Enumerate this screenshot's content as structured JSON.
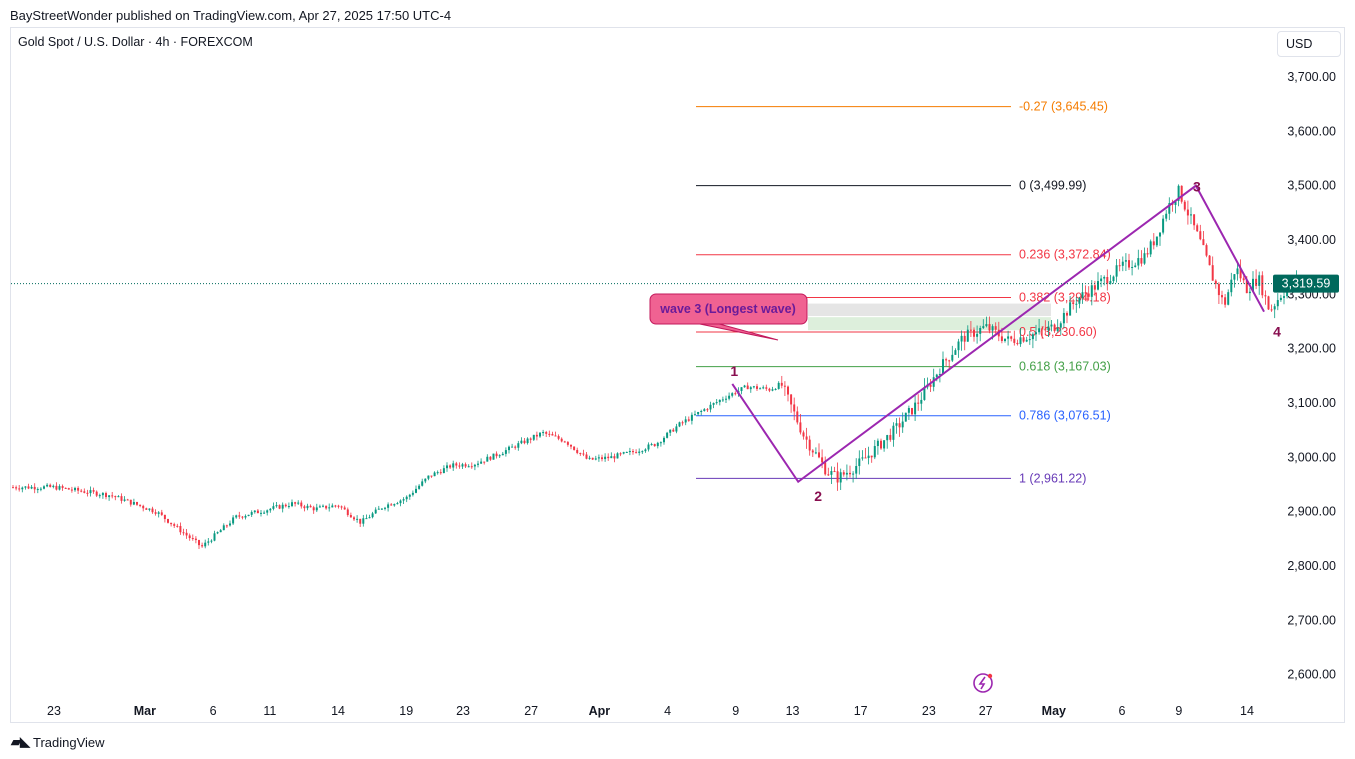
{
  "header": {
    "publish_line": "BayStreetWonder published on TradingView.com, Apr 27, 2025 17:50 UTC-4",
    "symbol_line": "Gold Spot / U.S. Dollar · 4h · FOREXCOM",
    "currency": "USD"
  },
  "footer": {
    "brand": "TradingView"
  },
  "colors": {
    "up": "#089981",
    "down": "#f23645",
    "wave_line": "#9c27b0",
    "wave_label": "#880e4f",
    "price_badge": "#00695c"
  },
  "chart_data": {
    "type": "candlestick",
    "ylim": [
      2560,
      3740
    ],
    "y_ticks": [
      "3,700.00",
      "3,600.00",
      "3,500.00",
      "3,400.00",
      "3,300.00",
      "3,200.00",
      "3,100.00",
      "3,000.00",
      "2,900.00",
      "2,800.00",
      "2,700.00",
      "2,600.00"
    ],
    "y_tick_values": [
      3700,
      3600,
      3500,
      3400,
      3300,
      3200,
      3100,
      3000,
      2900,
      2800,
      2700,
      2600
    ],
    "x_ticks": [
      "23",
      "Mar",
      "6",
      "11",
      "14",
      "19",
      "23",
      "27",
      "Apr",
      "4",
      "9",
      "13",
      "17",
      "23",
      "27",
      "May",
      "6",
      "9",
      "14"
    ],
    "x_tick_index": [
      0,
      8,
      14,
      19,
      25,
      31,
      36,
      42,
      48,
      54,
      60,
      65,
      71,
      77,
      82,
      88,
      94,
      99,
      105
    ],
    "current_price": {
      "label": "3,319.59",
      "value": 3319.59
    },
    "price_path": [
      [
        0,
        2945
      ],
      [
        5,
        2930
      ],
      [
        9,
        2900
      ],
      [
        13,
        2835
      ],
      [
        16,
        2890
      ],
      [
        19,
        2905
      ],
      [
        21,
        2915
      ],
      [
        23,
        2905
      ],
      [
        25,
        2912
      ],
      [
        27,
        2880
      ],
      [
        29,
        2910
      ],
      [
        31,
        2925
      ],
      [
        33,
        2965
      ],
      [
        35,
        2985
      ],
      [
        37,
        2988
      ],
      [
        39,
        3005
      ],
      [
        41,
        3025
      ],
      [
        43,
        3045
      ],
      [
        45,
        3030
      ],
      [
        47,
        2995
      ],
      [
        49,
        3000
      ],
      [
        51,
        3010
      ],
      [
        53,
        3025
      ],
      [
        55,
        3060
      ],
      [
        57,
        3085
      ],
      [
        59,
        3110
      ],
      [
        61,
        3130
      ],
      [
        63,
        3125
      ],
      [
        64,
        3135
      ],
      [
        66,
        3040
      ],
      [
        68,
        2975
      ],
      [
        69,
        2962
      ],
      [
        71,
        2990
      ],
      [
        72,
        3010
      ],
      [
        74,
        3050
      ],
      [
        76,
        3100
      ],
      [
        78,
        3165
      ],
      [
        80,
        3220
      ],
      [
        82,
        3240
      ],
      [
        84,
        3215
      ],
      [
        86,
        3225
      ],
      [
        88,
        3240
      ],
      [
        90,
        3290
      ],
      [
        92,
        3320
      ],
      [
        94,
        3350
      ],
      [
        96,
        3370
      ],
      [
        97,
        3405
      ],
      [
        98,
        3460
      ],
      [
        99,
        3490
      ],
      [
        100,
        3440
      ],
      [
        101,
        3390
      ],
      [
        102,
        3330
      ],
      [
        103,
        3280
      ],
      [
        104,
        3350
      ],
      [
        105,
        3310
      ],
      [
        106,
        3330
      ],
      [
        107,
        3270
      ],
      [
        108,
        3300
      ],
      [
        109,
        3320
      ]
    ],
    "fib_levels": [
      {
        "label": "-0.27 (3,645.45)",
        "value": 3645.45,
        "color": "#f57c00"
      },
      {
        "label": "0 (3,499.99)",
        "value": 3499.99,
        "color": "#131722"
      },
      {
        "label": "0.236 (3,372.84)",
        "value": 3372.84,
        "color": "#f23645"
      },
      {
        "label": "0.382 (3,294.18)",
        "value": 3294.18,
        "color": "#f23645"
      },
      {
        "label": "0.5 (3,230.60)",
        "value": 3230.6,
        "color": "#f23645"
      },
      {
        "label": "0.618 (3,167.03)",
        "value": 3167.03,
        "color": "#43a047"
      },
      {
        "label": "0.786 (3,076.51)",
        "value": 3076.51,
        "color": "#2962ff"
      },
      {
        "label": "1 (2,961.22)",
        "value": 2961.22,
        "color": "#673ab7"
      }
    ],
    "zones": [
      {
        "from": 3260,
        "to": 3283,
        "color": "#e0e0e0"
      },
      {
        "from": 3234,
        "to": 3258,
        "color": "#d7ecd6"
      }
    ],
    "wave_points": [
      {
        "label": "1",
        "value": 3135
      },
      {
        "label": "2",
        "value": 2955
      },
      {
        "label": "3",
        "value": 3500
      },
      {
        "label": "4",
        "value": 3268
      }
    ],
    "annotation": {
      "text": "wave 3 (Longest wave)"
    }
  }
}
